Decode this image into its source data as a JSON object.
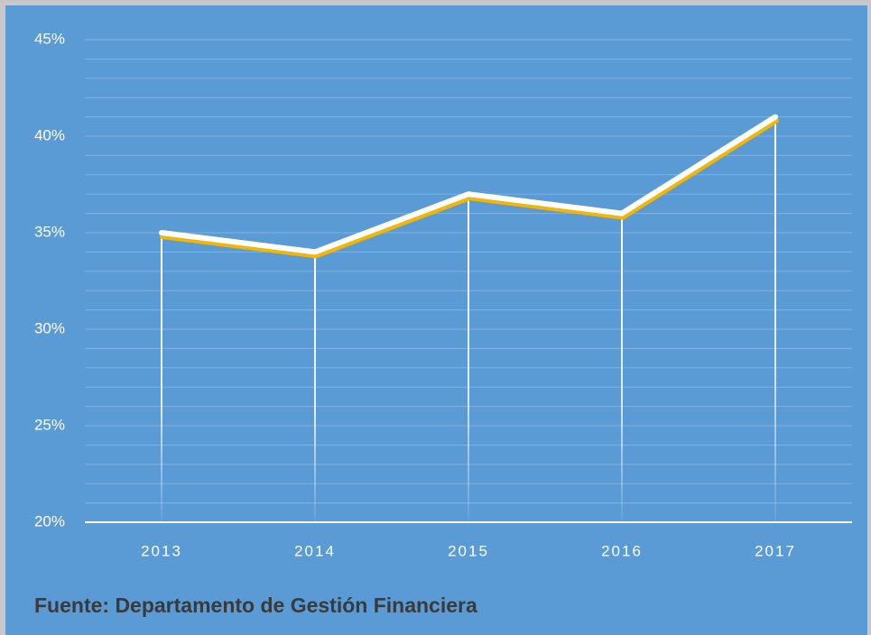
{
  "chart_data": {
    "type": "line",
    "categories": [
      "2013",
      "2014",
      "2015",
      "2016",
      "2017"
    ],
    "series": [
      {
        "name": "",
        "color": "#ffffff",
        "values": [
          35,
          34,
          37,
          36,
          41
        ]
      }
    ],
    "ylim": [
      20,
      45
    ],
    "yticks": [
      {
        "value": 20,
        "label": "20%"
      },
      {
        "value": 25,
        "label": "25%"
      },
      {
        "value": 30,
        "label": "30%"
      },
      {
        "value": 35,
        "label": "35%"
      },
      {
        "value": 40,
        "label": "40%"
      },
      {
        "value": 45,
        "label": "45%"
      }
    ],
    "grid": true,
    "source": "Fuente: Departamento de Gestión Financiera"
  }
}
